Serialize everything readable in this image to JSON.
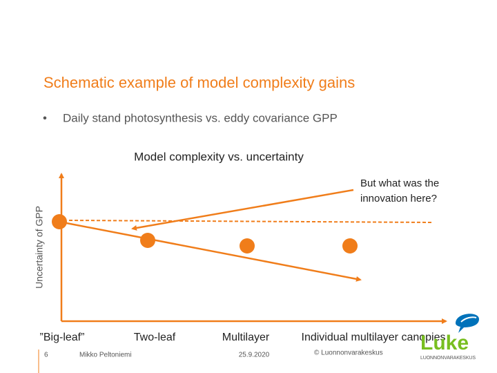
{
  "slide": {
    "title": "Schematic example of model complexity gains",
    "bullet": "Daily stand photosynthesis vs. eddy covariance GPP",
    "diagram": {
      "title": "Model complexity vs. uncertainty",
      "y_axis_label": "Uncertainty of GPP",
      "annotation": "But what was the innovation here?",
      "categories": [
        "”Big-leaf”",
        "Two-leaf",
        "Multilayer",
        "Individual multilayer canopies"
      ]
    },
    "footer": {
      "page": "6",
      "author": "Mikko Peltoniemi",
      "date": "25.9.2020",
      "copyright": "© Luonnonvarakeskus"
    },
    "logo": {
      "name": "Luke",
      "subtitle": "LUONNONVARAKESKUS"
    }
  }
}
